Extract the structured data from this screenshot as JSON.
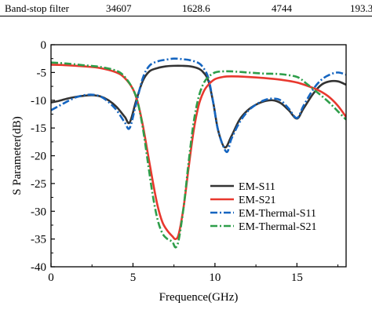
{
  "table_row": {
    "name": "Band-stop filter",
    "col1": "34607",
    "col2": "1628.6",
    "col3": "4744",
    "col4": "193.3"
  },
  "chart_data": {
    "type": "line",
    "title": "",
    "xlabel": "Frequence(GHz)",
    "ylabel": "S Parameter(dB)",
    "xlim": [
      0,
      18
    ],
    "ylim": [
      -40,
      0
    ],
    "xticks": [
      0,
      5,
      10,
      15
    ],
    "yticks": [
      0,
      -5,
      -10,
      -15,
      -20,
      -25,
      -30,
      -35,
      -40
    ],
    "legend_position": "lower-right",
    "grid": false,
    "series": [
      {
        "name": "EM-S11",
        "color": "#333333",
        "dash": "solid",
        "x": [
          0,
          0.5,
          1,
          1.5,
          2,
          2.5,
          3,
          3.5,
          4,
          4.5,
          4.8,
          5.2,
          5.6,
          6,
          6.5,
          7,
          7.5,
          8,
          8.5,
          9,
          9.3,
          9.6,
          9.9,
          10.2,
          10.6,
          11,
          11.5,
          12,
          12.5,
          13,
          13.5,
          14,
          14.5,
          15,
          15.4,
          16,
          16.5,
          17,
          17.5,
          18
        ],
        "y": [
          -10.4,
          -10.1,
          -9.7,
          -9.4,
          -9.2,
          -9.1,
          -9.3,
          -10.0,
          -11.2,
          -13.0,
          -14.0,
          -10.0,
          -6.5,
          -4.8,
          -4.2,
          -3.9,
          -3.8,
          -3.8,
          -3.9,
          -4.3,
          -5.0,
          -6.5,
          -10.5,
          -15.5,
          -18.5,
          -16.5,
          -13.5,
          -11.8,
          -10.8,
          -10.2,
          -10.0,
          -10.5,
          -11.8,
          -13.3,
          -11.5,
          -8.8,
          -7.2,
          -6.6,
          -6.6,
          -7.2
        ]
      },
      {
        "name": "EM-S21",
        "color": "#e8382e",
        "dash": "solid",
        "x": [
          0,
          1,
          2,
          3,
          4,
          4.5,
          5,
          5.3,
          5.6,
          5.9,
          6.2,
          6.5,
          6.8,
          7.1,
          7.4,
          7.6,
          7.8,
          8.1,
          8.4,
          8.7,
          9.0,
          9.3,
          9.6,
          10,
          10.5,
          11,
          12,
          13,
          14,
          15,
          16,
          16.5,
          17,
          17.5,
          18
        ],
        "y": [
          -3.6,
          -3.7,
          -3.9,
          -4.2,
          -5.0,
          -6.0,
          -8.0,
          -10.5,
          -14.5,
          -19.5,
          -24.5,
          -29.0,
          -32.0,
          -33.5,
          -34.5,
          -35.0,
          -34.0,
          -29.0,
          -22.0,
          -15.5,
          -11.0,
          -8.5,
          -7.2,
          -6.2,
          -5.8,
          -5.7,
          -5.8,
          -6.0,
          -6.3,
          -6.8,
          -7.8,
          -8.5,
          -9.5,
          -11.0,
          -13.0
        ]
      },
      {
        "name": "EM-Thermal-S11",
        "color": "#1565c0",
        "dash": "dashdot",
        "x": [
          0,
          0.5,
          1,
          1.5,
          2,
          2.5,
          3,
          3.5,
          4,
          4.5,
          4.8,
          5.2,
          5.6,
          6,
          6.5,
          7,
          7.5,
          8,
          8.5,
          9,
          9.3,
          9.6,
          9.9,
          10.2,
          10.7,
          11,
          11.5,
          12,
          12.5,
          13,
          13.5,
          14,
          14.5,
          15,
          15.4,
          16,
          16.5,
          17,
          17.5,
          18
        ],
        "y": [
          -11.8,
          -11.0,
          -10.2,
          -9.5,
          -9.1,
          -9.0,
          -9.3,
          -10.3,
          -11.8,
          -14.0,
          -15.0,
          -10.5,
          -6.0,
          -3.8,
          -3.0,
          -2.7,
          -2.5,
          -2.6,
          -2.8,
          -3.3,
          -4.2,
          -6.0,
          -10.5,
          -15.5,
          -19.3,
          -17.0,
          -14.0,
          -12.0,
          -10.8,
          -10.0,
          -9.7,
          -10.0,
          -11.5,
          -13.2,
          -11.0,
          -8.0,
          -6.3,
          -5.4,
          -5.0,
          -5.4
        ]
      },
      {
        "name": "EM-Thermal-S21",
        "color": "#2e9e4a",
        "dash": "dashdot",
        "x": [
          0,
          1,
          2,
          3,
          4,
          4.5,
          5,
          5.3,
          5.6,
          5.9,
          6.2,
          6.5,
          6.8,
          7.1,
          7.4,
          7.6,
          7.8,
          8.1,
          8.4,
          8.7,
          9.0,
          9.3,
          9.6,
          10,
          10.5,
          11,
          12,
          13,
          14,
          15,
          15.5,
          16,
          16.5,
          17,
          17.5,
          18
        ],
        "y": [
          -3.2,
          -3.4,
          -3.7,
          -4.0,
          -4.7,
          -5.8,
          -8.0,
          -10.5,
          -15.0,
          -21.0,
          -27.0,
          -31.5,
          -34.0,
          -35.0,
          -35.5,
          -36.5,
          -35.0,
          -29.0,
          -21.0,
          -14.0,
          -9.5,
          -7.0,
          -5.8,
          -5.0,
          -4.8,
          -4.8,
          -5.0,
          -5.2,
          -5.3,
          -5.8,
          -6.8,
          -8.0,
          -9.2,
          -10.5,
          -12.0,
          -13.5
        ]
      }
    ]
  }
}
